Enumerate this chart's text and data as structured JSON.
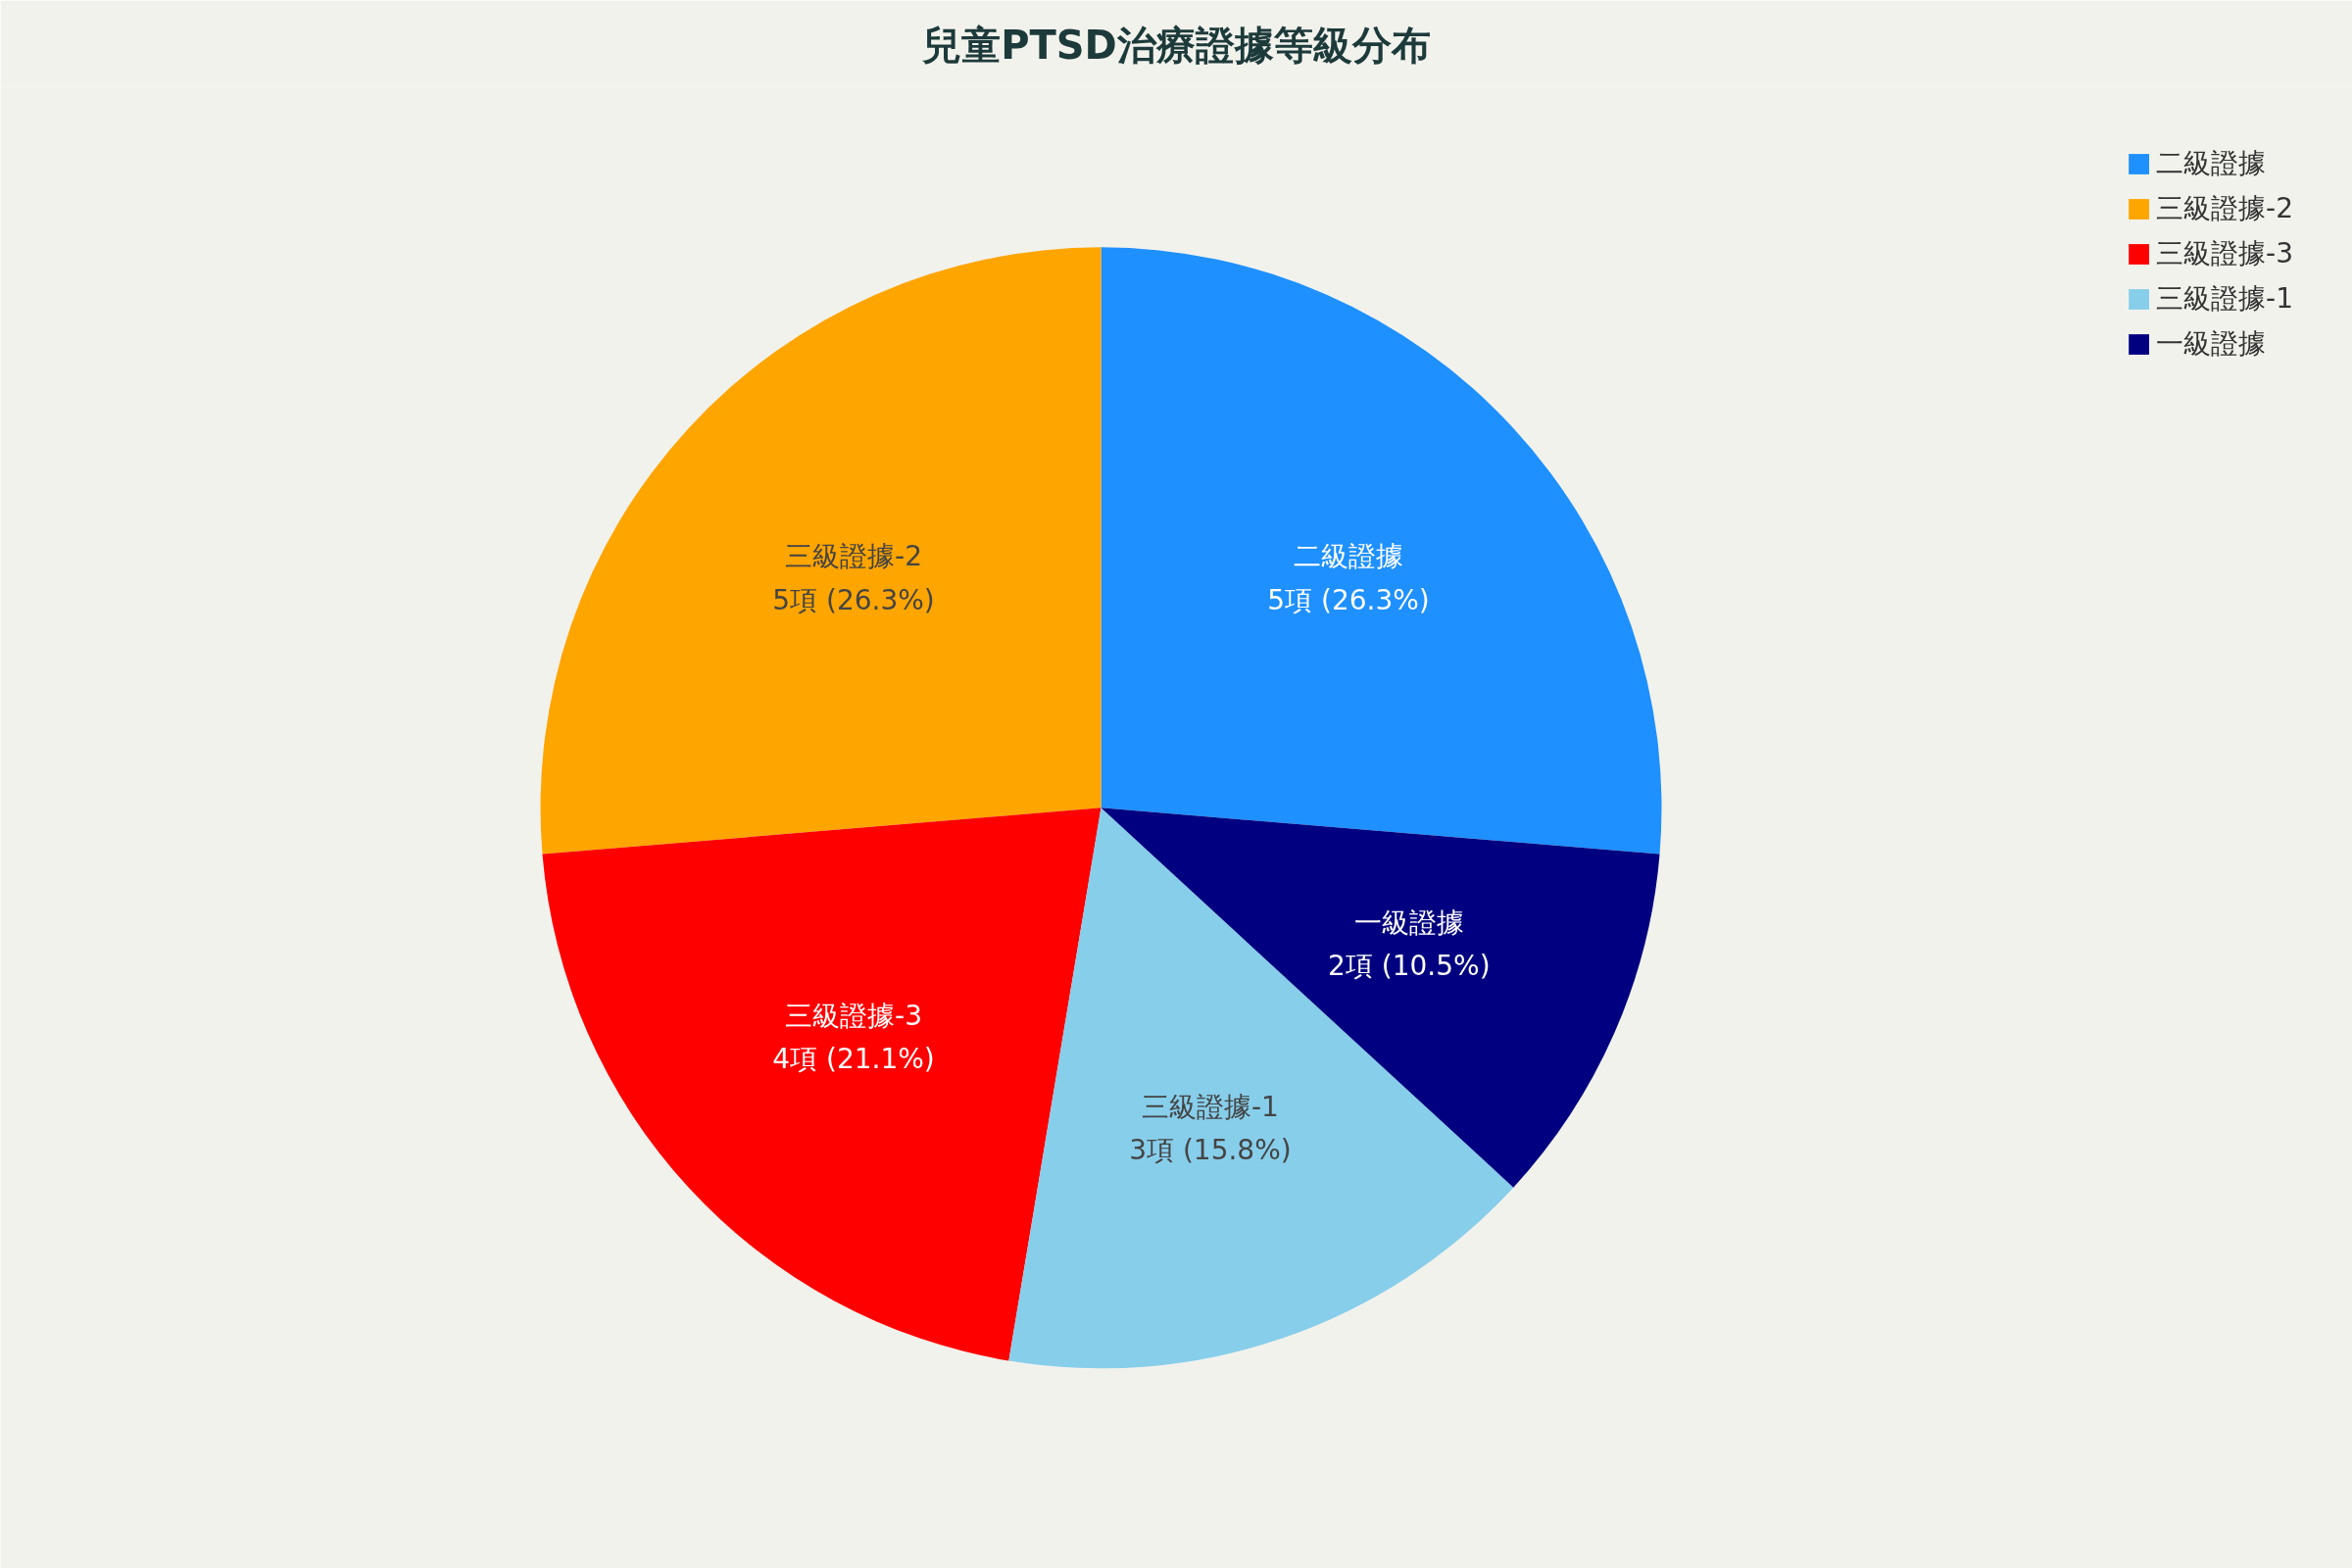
{
  "chart_data": {
    "type": "pie",
    "title": "兒童PTSD治療證據等級分布",
    "categories": [
      "二級證據",
      "三級證據-2",
      "三級證據-3",
      "三級證據-1",
      "一級證據"
    ],
    "values": [
      5,
      5,
      4,
      3,
      2
    ],
    "value_labels": [
      "5項 (26.3%)",
      "5項 (26.3%)",
      "4項 (21.1%)",
      "3項 (15.8%)",
      "2項 (10.5%)"
    ],
    "colors": [
      "#1e90ff",
      "#ffa500",
      "#ff0000",
      "#87ceeb",
      "#000080"
    ],
    "legend": "top right"
  }
}
